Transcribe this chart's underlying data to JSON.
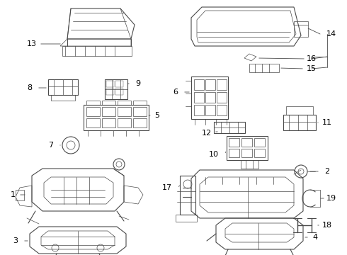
{
  "background_color": "#ffffff",
  "line_color": "#4a4a4a",
  "label_color": "#000000",
  "fig_width": 4.9,
  "fig_height": 3.6,
  "dpi": 100
}
